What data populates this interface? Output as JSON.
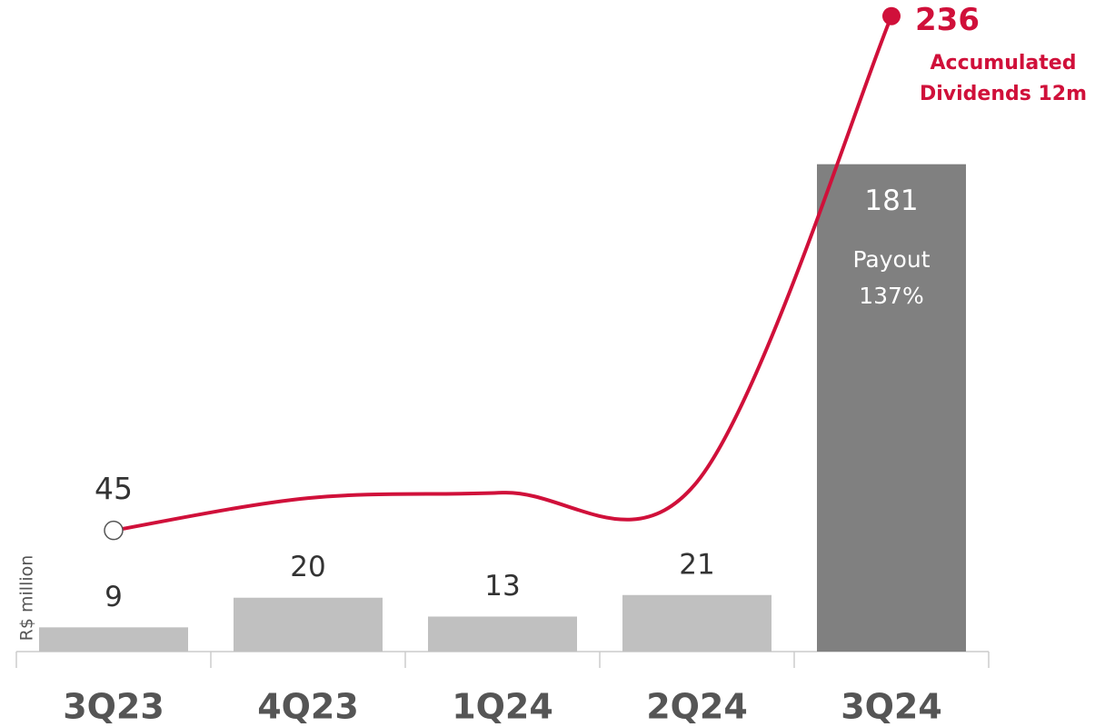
{
  "chart_data": {
    "type": "bar_line",
    "y_axis_label": "R$ million",
    "categories": [
      "3Q23",
      "4Q23",
      "1Q24",
      "2Q24",
      "3Q24"
    ],
    "series": [
      {
        "name": "Dividends",
        "type": "bar",
        "values": [
          9,
          20,
          13,
          21,
          181
        ],
        "colors": [
          "#c0c0c0",
          "#c0c0c0",
          "#c0c0c0",
          "#c0c0c0",
          "#808080"
        ]
      },
      {
        "name": "Accumulated Dividends 12m",
        "type": "line",
        "color": "#d0103a",
        "values": [
          45,
          57,
          59,
          63,
          236
        ]
      }
    ],
    "annotations": {
      "line_label": [
        "Accumulated",
        "Dividends 12m"
      ],
      "payout": [
        "Payout",
        "137%"
      ]
    }
  }
}
